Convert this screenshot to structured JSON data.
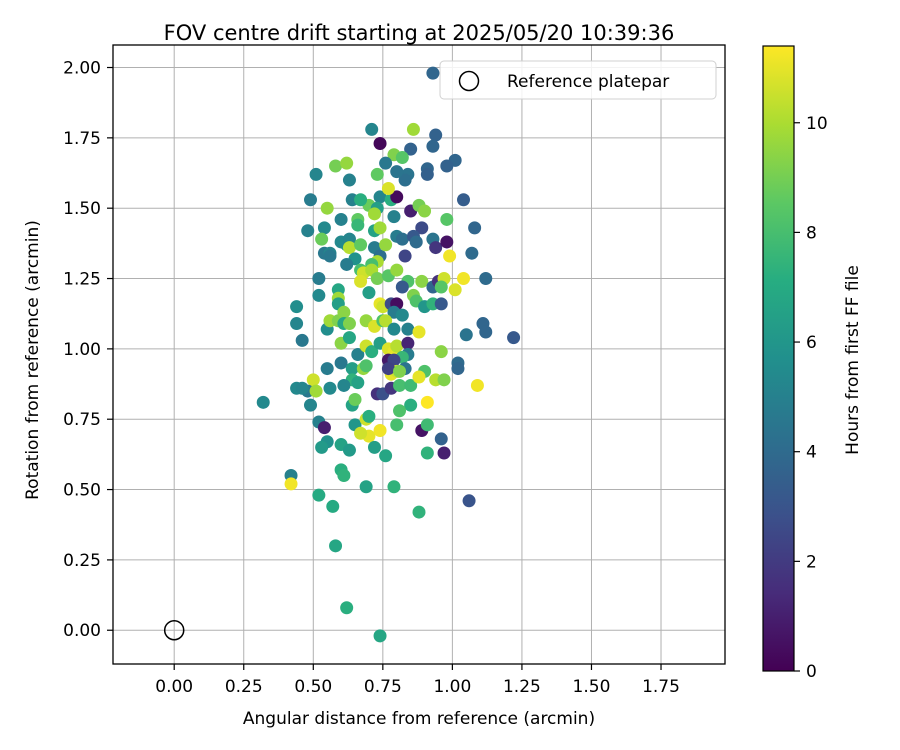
{
  "chart_data": {
    "type": "scatter",
    "title": "FOV centre drift starting at 2025/05/20 10:39:36",
    "xlabel": "Angular distance from reference (arcmin)",
    "ylabel": "Rotation from reference (arcmin)",
    "xlim": [
      -0.22,
      1.98
    ],
    "ylim": [
      -0.12,
      2.08
    ],
    "xticks": [
      "0.00",
      "0.25",
      "0.50",
      "0.75",
      "1.00",
      "1.25",
      "1.50",
      "1.75"
    ],
    "yticks": [
      "0.00",
      "0.25",
      "0.50",
      "0.75",
      "1.00",
      "1.25",
      "1.50",
      "1.75",
      "2.00"
    ],
    "grid": true,
    "legend": {
      "position": "top-right",
      "label": "Reference platepar"
    },
    "reference_point": {
      "x": 0.0,
      "y": 0.0
    },
    "colorbar": {
      "label": "Hours from first FF file",
      "colormap": "viridis",
      "range": [
        0,
        11.4
      ],
      "ticks": [
        "0",
        "2",
        "4",
        "6",
        "8",
        "10"
      ]
    },
    "points": [
      [
        0.93,
        1.98,
        3.8
      ],
      [
        0.71,
        1.78,
        5.2
      ],
      [
        0.74,
        1.73,
        0.2
      ],
      [
        0.86,
        1.78,
        9.8
      ],
      [
        0.94,
        1.76,
        3.6
      ],
      [
        0.93,
        1.72,
        3.8
      ],
      [
        0.85,
        1.71,
        3.6
      ],
      [
        1.01,
        1.67,
        3.8
      ],
      [
        0.98,
        1.65,
        3.6
      ],
      [
        0.79,
        1.69,
        9.2
      ],
      [
        0.82,
        1.68,
        8.4
      ],
      [
        0.76,
        1.66,
        4.6
      ],
      [
        0.84,
        1.62,
        4.4
      ],
      [
        0.91,
        1.64,
        3.8
      ],
      [
        0.91,
        1.62,
        3.5
      ],
      [
        0.58,
        1.65,
        9.0
      ],
      [
        0.62,
        1.66,
        9.6
      ],
      [
        0.51,
        1.62,
        5.2
      ],
      [
        0.63,
        1.6,
        5.0
      ],
      [
        0.73,
        1.62,
        8.6
      ],
      [
        0.83,
        1.6,
        4.2
      ],
      [
        0.8,
        1.63,
        4.4
      ],
      [
        0.49,
        1.53,
        4.8
      ],
      [
        0.55,
        1.5,
        9.6
      ],
      [
        0.64,
        1.53,
        5.0
      ],
      [
        0.7,
        1.51,
        8.8
      ],
      [
        0.67,
        1.53,
        7.2
      ],
      [
        0.74,
        1.54,
        5.2
      ],
      [
        0.73,
        1.5,
        6.4
      ],
      [
        0.78,
        1.53,
        7.2
      ],
      [
        0.8,
        1.54,
        0.3
      ],
      [
        0.77,
        1.57,
        10.8
      ],
      [
        0.85,
        1.49,
        1.0
      ],
      [
        0.88,
        1.51,
        9.0
      ],
      [
        0.9,
        1.49,
        9.4
      ],
      [
        1.04,
        1.53,
        3.4
      ],
      [
        0.79,
        1.47,
        5.0
      ],
      [
        0.72,
        1.48,
        9.8
      ],
      [
        0.6,
        1.46,
        5.0
      ],
      [
        0.66,
        1.46,
        8.6
      ],
      [
        0.66,
        1.44,
        7.6
      ],
      [
        0.48,
        1.42,
        5.0
      ],
      [
        0.54,
        1.43,
        5.4
      ],
      [
        0.62,
        1.37,
        6.0
      ],
      [
        0.72,
        1.42,
        6.6
      ],
      [
        0.74,
        1.43,
        9.8
      ],
      [
        0.89,
        1.43,
        2.6
      ],
      [
        0.98,
        1.46,
        8.4
      ],
      [
        1.08,
        1.43,
        3.8
      ],
      [
        0.53,
        1.39,
        8.8
      ],
      [
        0.54,
        1.34,
        4.6
      ],
      [
        0.56,
        1.34,
        5.2
      ],
      [
        0.56,
        1.33,
        4.6
      ],
      [
        0.6,
        1.38,
        5.4
      ],
      [
        0.63,
        1.39,
        5.2
      ],
      [
        0.63,
        1.36,
        10.2
      ],
      [
        0.65,
        1.32,
        5.8
      ],
      [
        0.67,
        1.37,
        8.6
      ],
      [
        0.72,
        1.36,
        4.8
      ],
      [
        0.74,
        1.33,
        4.2
      ],
      [
        0.73,
        1.31,
        10.0
      ],
      [
        0.71,
        1.3,
        8.0
      ],
      [
        0.76,
        1.37,
        9.6
      ],
      [
        0.8,
        1.4,
        4.8
      ],
      [
        0.82,
        1.39,
        4.2
      ],
      [
        0.86,
        1.4,
        3.2
      ],
      [
        0.87,
        1.38,
        4.0
      ],
      [
        0.83,
        1.33,
        2.4
      ],
      [
        0.93,
        1.39,
        4.4
      ],
      [
        0.94,
        1.36,
        1.8
      ],
      [
        0.98,
        1.38,
        0.6
      ],
      [
        0.99,
        1.33,
        11.2
      ],
      [
        1.07,
        1.34,
        4.0
      ],
      [
        0.52,
        1.25,
        4.8
      ],
      [
        0.52,
        1.19,
        5.4
      ],
      [
        0.59,
        1.21,
        6.8
      ],
      [
        0.59,
        1.18,
        9.8
      ],
      [
        0.59,
        1.16,
        6.4
      ],
      [
        0.62,
        1.3,
        4.8
      ],
      [
        0.67,
        1.28,
        8.0
      ],
      [
        0.68,
        1.27,
        10.6
      ],
      [
        0.71,
        1.28,
        10.0
      ],
      [
        0.73,
        1.25,
        9.0
      ],
      [
        0.67,
        1.24,
        10.8
      ],
      [
        0.7,
        1.2,
        6.4
      ],
      [
        0.74,
        1.16,
        11.0
      ],
      [
        0.75,
        1.15,
        10.6
      ],
      [
        0.77,
        1.26,
        8.4
      ],
      [
        0.8,
        1.28,
        9.6
      ],
      [
        0.84,
        1.24,
        8.2
      ],
      [
        0.82,
        1.22,
        3.2
      ],
      [
        0.86,
        1.19,
        9.2
      ],
      [
        0.87,
        1.17,
        8.2
      ],
      [
        0.89,
        1.24,
        9.4
      ],
      [
        0.93,
        1.22,
        3.8
      ],
      [
        0.95,
        1.24,
        1.6
      ],
      [
        0.97,
        1.25,
        10.6
      ],
      [
        0.96,
        1.22,
        8.4
      ],
      [
        1.01,
        1.21,
        10.8
      ],
      [
        1.04,
        1.25,
        11.2
      ],
      [
        1.12,
        1.25,
        4.0
      ],
      [
        0.78,
        1.16,
        2.6
      ],
      [
        0.8,
        1.16,
        0.4
      ],
      [
        0.79,
        1.13,
        4.8
      ],
      [
        0.82,
        1.12,
        5.4
      ],
      [
        0.9,
        1.15,
        6.0
      ],
      [
        0.93,
        1.16,
        7.4
      ],
      [
        0.96,
        1.16,
        3.2
      ],
      [
        0.44,
        1.15,
        5.6
      ],
      [
        0.44,
        1.09,
        5.2
      ],
      [
        0.46,
        1.03,
        4.6
      ],
      [
        0.55,
        1.07,
        5.6
      ],
      [
        0.56,
        1.1,
        9.8
      ],
      [
        0.59,
        1.1,
        9.2
      ],
      [
        0.61,
        1.13,
        9.4
      ],
      [
        0.61,
        1.09,
        6.8
      ],
      [
        0.63,
        1.09,
        9.2
      ],
      [
        0.69,
        1.1,
        9.6
      ],
      [
        0.72,
        1.08,
        10.8
      ],
      [
        0.75,
        1.1,
        8.2
      ],
      [
        0.76,
        1.1,
        10.2
      ],
      [
        0.79,
        1.07,
        5.4
      ],
      [
        0.84,
        1.07,
        5.0
      ],
      [
        0.88,
        1.06,
        11.0
      ],
      [
        1.11,
        1.09,
        3.8
      ],
      [
        1.12,
        1.06,
        3.8
      ],
      [
        1.22,
        1.04,
        3.2
      ],
      [
        1.05,
        1.05,
        4.4
      ],
      [
        0.6,
        1.02,
        9.4
      ],
      [
        0.63,
        1.04,
        6.8
      ],
      [
        0.66,
        0.98,
        5.0
      ],
      [
        0.69,
        1.01,
        10.6
      ],
      [
        0.71,
        0.99,
        7.2
      ],
      [
        0.74,
        1.02,
        6.4
      ],
      [
        0.77,
        1.0,
        10.8
      ],
      [
        0.79,
        0.99,
        11.0
      ],
      [
        0.8,
        1.01,
        10.2
      ],
      [
        0.84,
        1.02,
        1.2
      ],
      [
        0.84,
        0.98,
        4.8
      ],
      [
        0.82,
        0.97,
        7.6
      ],
      [
        0.83,
        0.93,
        4.4
      ],
      [
        0.77,
        0.96,
        0.8
      ],
      [
        0.79,
        0.96,
        2.4
      ],
      [
        0.78,
        0.91,
        11.0
      ],
      [
        0.8,
        0.92,
        10.6
      ],
      [
        0.77,
        0.93,
        2.2
      ],
      [
        0.81,
        0.92,
        9.2
      ],
      [
        0.9,
        0.92,
        8.2
      ],
      [
        0.96,
        0.99,
        9.4
      ],
      [
        1.02,
        0.95,
        4.0
      ],
      [
        1.02,
        0.93,
        3.8
      ],
      [
        0.55,
        0.93,
        4.8
      ],
      [
        0.6,
        0.95,
        4.6
      ],
      [
        0.64,
        0.93,
        6.4
      ],
      [
        0.64,
        0.89,
        7.4
      ],
      [
        0.68,
        0.93,
        9.6
      ],
      [
        0.69,
        0.94,
        8.2
      ],
      [
        0.66,
        0.88,
        6.6
      ],
      [
        0.61,
        0.87,
        5.2
      ],
      [
        0.56,
        0.86,
        5.4
      ],
      [
        0.5,
        0.89,
        10.6
      ],
      [
        0.48,
        0.85,
        4.6
      ],
      [
        0.51,
        0.85,
        9.8
      ],
      [
        0.44,
        0.86,
        5.4
      ],
      [
        0.46,
        0.86,
        5.2
      ],
      [
        0.32,
        0.81,
        5.4
      ],
      [
        0.49,
        0.8,
        5.2
      ],
      [
        0.64,
        0.8,
        6.6
      ],
      [
        0.65,
        0.82,
        8.8
      ],
      [
        0.73,
        0.84,
        1.6
      ],
      [
        0.75,
        0.84,
        2.8
      ],
      [
        0.78,
        0.86,
        1.8
      ],
      [
        0.81,
        0.87,
        8.0
      ],
      [
        0.85,
        0.87,
        7.8
      ],
      [
        0.88,
        0.9,
        11.0
      ],
      [
        0.94,
        0.89,
        10.2
      ],
      [
        0.97,
        0.89,
        9.2
      ],
      [
        1.09,
        0.87,
        11.2
      ],
      [
        0.91,
        0.81,
        11.4
      ],
      [
        0.85,
        0.8,
        7.2
      ],
      [
        0.81,
        0.78,
        8.2
      ],
      [
        0.8,
        0.73,
        8.0
      ],
      [
        0.89,
        0.71,
        0.6
      ],
      [
        0.91,
        0.73,
        7.8
      ],
      [
        0.52,
        0.74,
        5.0
      ],
      [
        0.54,
        0.72,
        1.0
      ],
      [
        0.65,
        0.73,
        6.0
      ],
      [
        0.69,
        0.75,
        10.6
      ],
      [
        0.7,
        0.76,
        7.2
      ],
      [
        0.7,
        0.69,
        11.0
      ],
      [
        0.74,
        0.71,
        11.2
      ],
      [
        0.67,
        0.7,
        10.6
      ],
      [
        0.55,
        0.67,
        5.8
      ],
      [
        0.53,
        0.65,
        6.2
      ],
      [
        0.6,
        0.66,
        6.6
      ],
      [
        0.63,
        0.64,
        6.2
      ],
      [
        0.72,
        0.65,
        6.4
      ],
      [
        0.76,
        0.62,
        6.8
      ],
      [
        0.91,
        0.63,
        7.4
      ],
      [
        0.96,
        0.68,
        3.6
      ],
      [
        0.97,
        0.63,
        1.0
      ],
      [
        0.42,
        0.55,
        5.0
      ],
      [
        0.42,
        0.52,
        11.2
      ],
      [
        0.6,
        0.57,
        7.2
      ],
      [
        0.61,
        0.55,
        7.4
      ],
      [
        0.52,
        0.48,
        7.0
      ],
      [
        0.69,
        0.51,
        6.6
      ],
      [
        0.79,
        0.51,
        7.4
      ],
      [
        0.57,
        0.44,
        7.0
      ],
      [
        0.88,
        0.42,
        7.4
      ],
      [
        1.06,
        0.46,
        3.0
      ],
      [
        0.58,
        0.3,
        6.8
      ],
      [
        0.62,
        0.08,
        7.2
      ],
      [
        0.74,
        -0.02,
        6.8
      ]
    ]
  }
}
